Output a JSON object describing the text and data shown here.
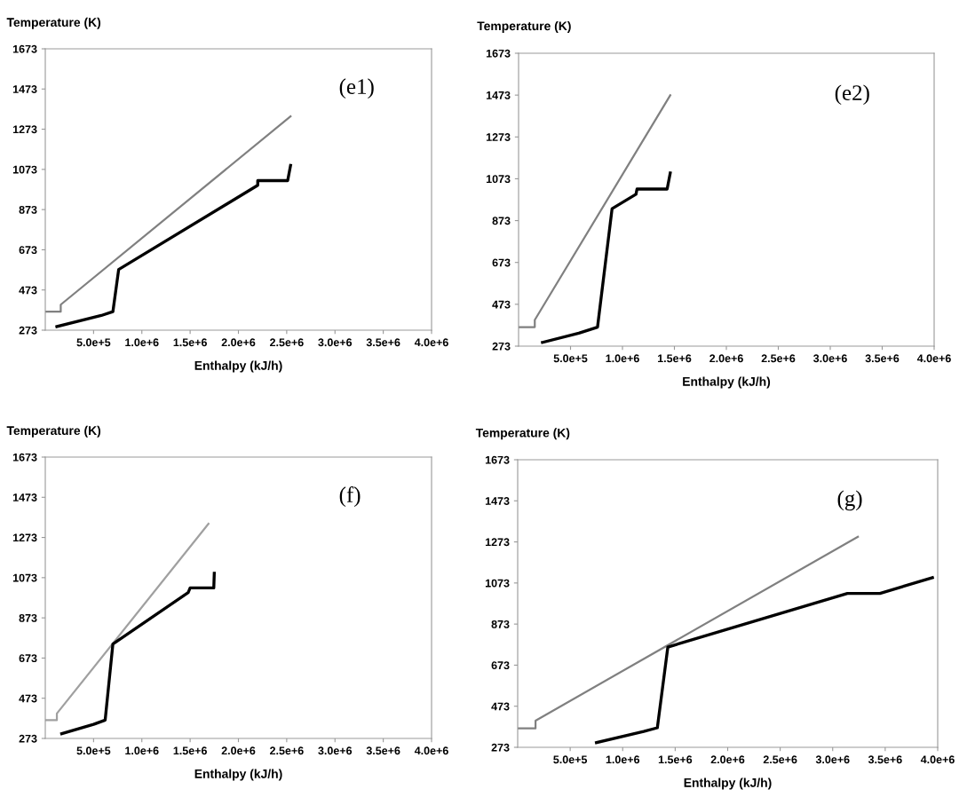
{
  "chart_data": [
    {
      "type": "line",
      "xlabel": "Enthalpy (kJ/h)",
      "ylabel": "Temperature (K)",
      "annotations": [
        "(e1)"
      ],
      "xlim": [
        0,
        4000000
      ],
      "ylim": [
        273,
        1673
      ],
      "xticks": [
        {
          "value": 500000,
          "label": "5.0e+5"
        },
        {
          "value": 1000000,
          "label": "1.0e+6"
        },
        {
          "value": 1500000,
          "label": "1.5e+6"
        },
        {
          "value": 2000000,
          "label": "2.0e+6"
        },
        {
          "value": 2500000,
          "label": "2.5e+6"
        },
        {
          "value": 3000000,
          "label": "3.0e+6"
        },
        {
          "value": 3500000,
          "label": "3.5e+6"
        },
        {
          "value": 4000000,
          "label": "4.0e+6"
        }
      ],
      "yticks": [
        273,
        473,
        673,
        873,
        1073,
        1273,
        1473,
        1673
      ],
      "grid": false,
      "legend": false,
      "series": [
        {
          "color": "#808080",
          "x": [
            0,
            160000,
            160000,
            2540000
          ],
          "values": [
            365,
            365,
            400,
            1337
          ]
        },
        {
          "color": "#000000",
          "x": [
            120000,
            580000,
            700000,
            760000,
            2200000,
            2200000,
            2510000,
            2540000
          ],
          "values": [
            291,
            346,
            365,
            575,
            994,
            1017,
            1017,
            1093
          ]
        }
      ]
    },
    {
      "type": "line",
      "xlabel": "Enthalpy (kJ/h)",
      "ylabel": "Temperature (K)",
      "annotations": [
        "(e2)"
      ],
      "xlim": [
        0,
        4000000
      ],
      "ylim": [
        273,
        1673
      ],
      "xticks": [
        {
          "value": 500000,
          "label": "5.0e+5"
        },
        {
          "value": 1000000,
          "label": "1.0e+6"
        },
        {
          "value": 1500000,
          "label": "1.5e+6"
        },
        {
          "value": 2000000,
          "label": "2.0e+6"
        },
        {
          "value": 2500000,
          "label": "2.5e+6"
        },
        {
          "value": 3000000,
          "label": "3.0e+6"
        },
        {
          "value": 3500000,
          "label": "3.5e+6"
        },
        {
          "value": 4000000,
          "label": "4.0e+6"
        }
      ],
      "yticks": [
        273,
        473,
        673,
        873,
        1073,
        1273,
        1473,
        1673
      ],
      "grid": false,
      "legend": false,
      "series": [
        {
          "color": "#808080",
          "x": [
            0,
            156000,
            156000,
            1460000
          ],
          "values": [
            364,
            364,
            398,
            1472
          ]
        },
        {
          "color": "#000000",
          "x": [
            230000,
            580000,
            760000,
            900000,
            1130000,
            1140000,
            1430000,
            1460000
          ],
          "values": [
            291,
            335,
            364,
            930,
            999,
            1024,
            1024,
            1101
          ]
        }
      ]
    },
    {
      "type": "line",
      "xlabel": "Enthalpy (kJ/h)",
      "ylabel": "Temperature (K)",
      "annotations": [
        "(f)"
      ],
      "xlim": [
        0,
        4000000
      ],
      "ylim": [
        273,
        1673
      ],
      "xticks": [
        {
          "value": 500000,
          "label": "5.0e+5"
        },
        {
          "value": 1000000,
          "label": "1.0e+6"
        },
        {
          "value": 1500000,
          "label": "1.5e+6"
        },
        {
          "value": 2000000,
          "label": "2.0e+6"
        },
        {
          "value": 2500000,
          "label": "2.5e+6"
        },
        {
          "value": 3000000,
          "label": "3.0e+6"
        },
        {
          "value": 3500000,
          "label": "3.5e+6"
        },
        {
          "value": 4000000,
          "label": "4.0e+6"
        }
      ],
      "yticks": [
        273,
        473,
        673,
        873,
        1073,
        1273,
        1473,
        1673
      ],
      "grid": false,
      "legend": false,
      "series": [
        {
          "color": "#a0a0a0",
          "x": [
            0,
            120000,
            120000,
            1690000
          ],
          "values": [
            364,
            364,
            397,
            1341
          ]
        },
        {
          "color": "#000000",
          "x": [
            170000,
            500000,
            620000,
            700000,
            1480000,
            1500000,
            1745000,
            1750000
          ],
          "values": [
            297,
            343,
            364,
            743,
            999,
            1022,
            1022,
            1095
          ]
        }
      ]
    },
    {
      "type": "line",
      "xlabel": "Enthalpy (kJ/h)",
      "ylabel": "Temperature (K)",
      "annotations": [
        "(g)"
      ],
      "xlim": [
        0,
        4000000
      ],
      "ylim": [
        273,
        1673
      ],
      "xticks": [
        {
          "value": 500000,
          "label": "5.0e+5"
        },
        {
          "value": 1000000,
          "label": "1.0e+6"
        },
        {
          "value": 1500000,
          "label": "1.5e+6"
        },
        {
          "value": 2000000,
          "label": "2.0e+6"
        },
        {
          "value": 2500000,
          "label": "2.5e+6"
        },
        {
          "value": 3000000,
          "label": "3.0e+6"
        },
        {
          "value": 3500000,
          "label": "3.5e+6"
        },
        {
          "value": 4000000,
          "label": "4.0e+6"
        }
      ],
      "yticks": [
        273,
        473,
        673,
        873,
        1073,
        1273,
        1473,
        1673
      ],
      "grid": false,
      "legend": false,
      "series": [
        {
          "color": "#808080",
          "x": [
            0,
            170000,
            170000,
            3240000
          ],
          "values": [
            365,
            365,
            403,
            1298
          ]
        },
        {
          "color": "#000000",
          "x": [
            750000,
            1200000,
            1330000,
            1430000,
            3140000,
            3450000,
            3950000
          ],
          "values": [
            296,
            350,
            368,
            761,
            1022,
            1022,
            1099
          ]
        }
      ]
    }
  ]
}
